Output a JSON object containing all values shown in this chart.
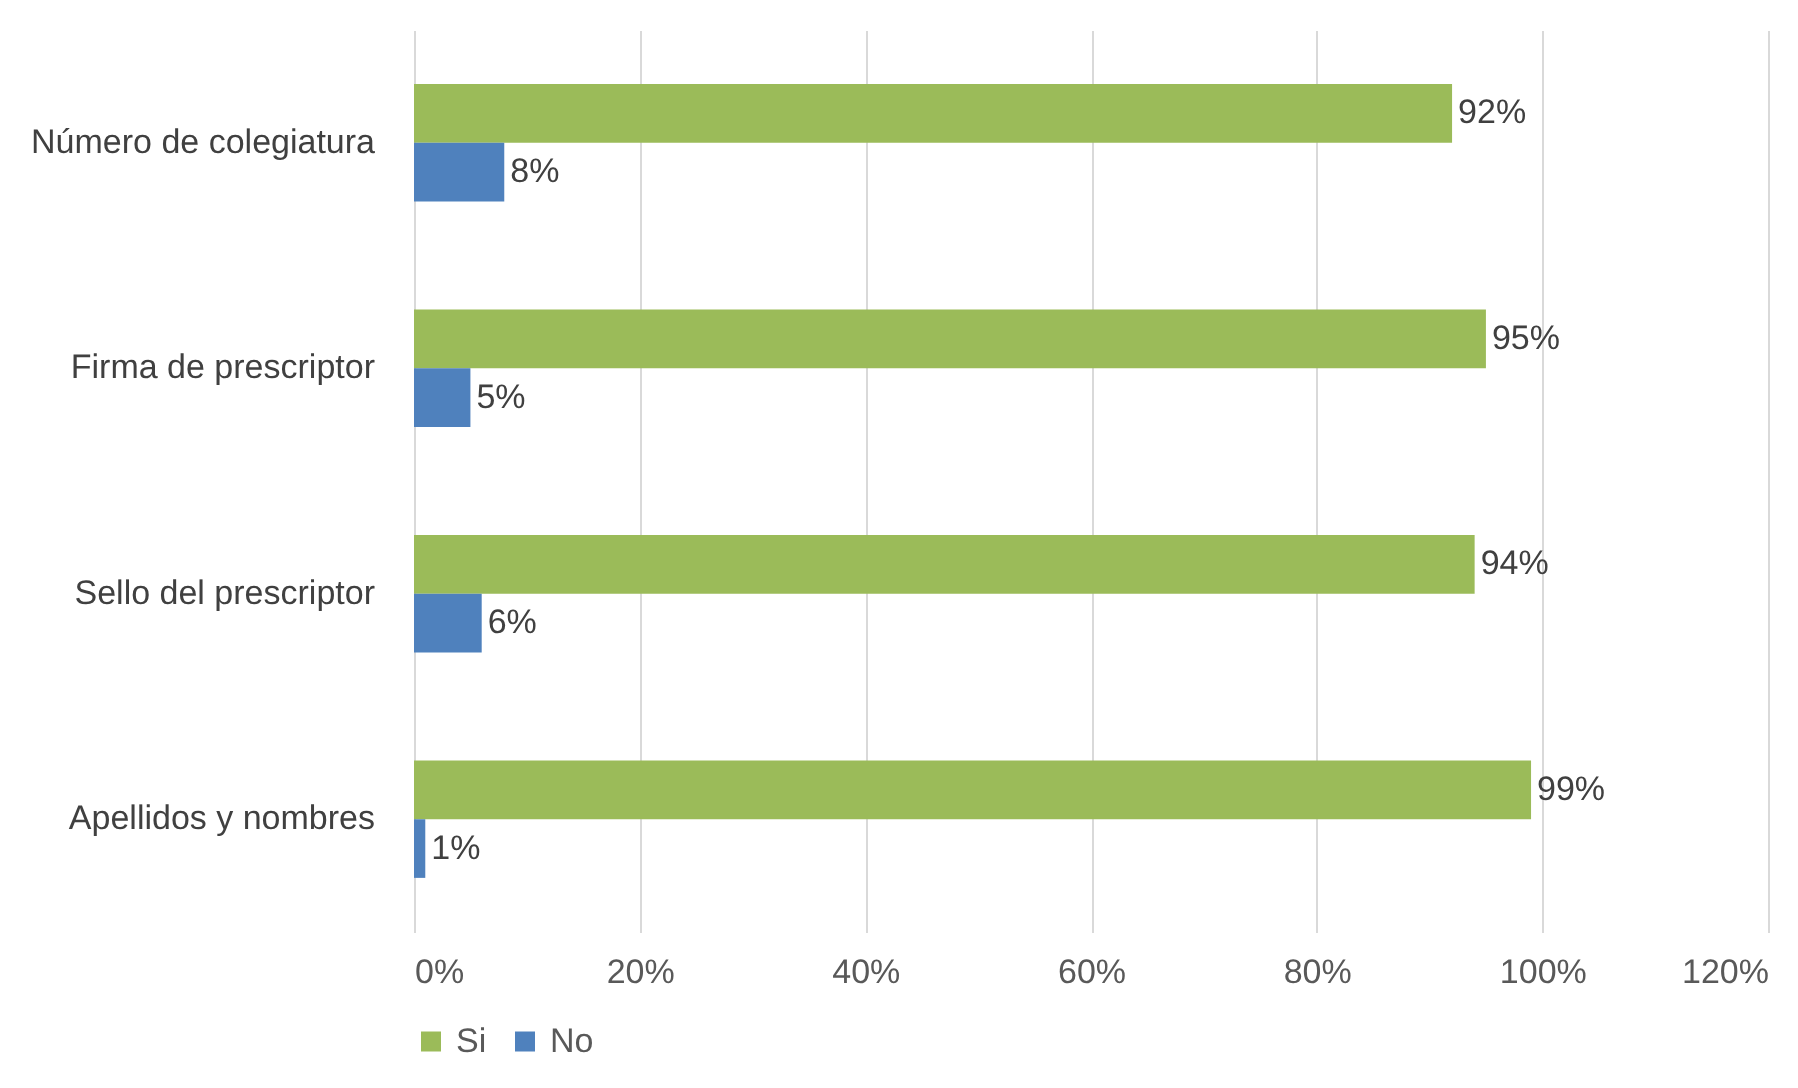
{
  "chart_data": {
    "type": "bar",
    "orientation": "horizontal",
    "categories": [
      "Número de colegiatura",
      "Firma de prescriptor",
      "Sello del prescriptor",
      "Apellidos y nombres"
    ],
    "series": [
      {
        "name": "Si",
        "color": "#9bbb59",
        "values": [
          92,
          95,
          94,
          99
        ],
        "value_labels": [
          "92%",
          "95%",
          "94%",
          "99%"
        ]
      },
      {
        "name": "No",
        "color": "#4f81bd",
        "values": [
          8,
          5,
          6,
          1
        ],
        "value_labels": [
          "8%",
          "5%",
          "6%",
          "1%"
        ]
      }
    ],
    "xlim": [
      0,
      120
    ],
    "xticks": [
      {
        "value": 0,
        "label": "0%"
      },
      {
        "value": 20,
        "label": "20%"
      },
      {
        "value": 40,
        "label": "40%"
      },
      {
        "value": 60,
        "label": "60%"
      },
      {
        "value": 80,
        "label": "80%"
      },
      {
        "value": 100,
        "label": "100%"
      },
      {
        "value": 120,
        "label": "120%"
      }
    ],
    "grid": "x",
    "legend": "bottom"
  }
}
